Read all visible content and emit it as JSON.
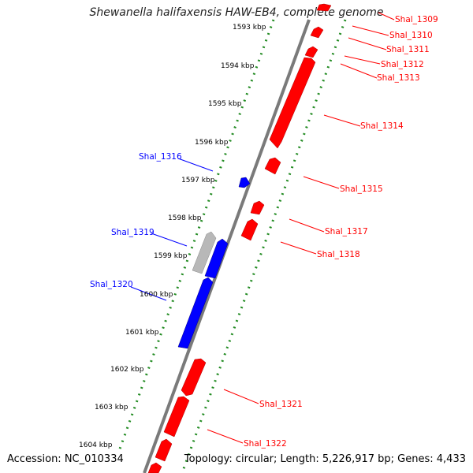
{
  "title": "Shewanella halifaxensis HAW-EB4, complete genome",
  "footer": {
    "accession": "Accession: NC_010334",
    "summary": "Topology: circular; Length: 5,226,917 bp; Genes: 4,433"
  },
  "colors": {
    "forward_strand": "#ff0000",
    "reverse_strand": "#0000ff",
    "other_feature": "#b0b0b0",
    "backbone": "#808080",
    "tick": "#228b22"
  },
  "ticks": [
    "1593 kbp",
    "1594 kbp",
    "1595 kbp",
    "1596 kbp",
    "1597 kbp",
    "1598 kbp",
    "1599 kbp",
    "1600 kbp",
    "1601 kbp",
    "1602 kbp",
    "1603 kbp",
    "1604 kbp"
  ],
  "gene_labels": {
    "right": [
      "Shal_1309",
      "Shal_1310",
      "Shal_1311",
      "Shal_1312",
      "Shal_1313",
      "Shal_1314",
      "Shal_1315",
      "Shal_1317",
      "Shal_1318",
      "Shal_1321",
      "Shal_1322"
    ],
    "left": [
      "Shal_1316",
      "Shal_1319",
      "Shal_1320"
    ]
  }
}
